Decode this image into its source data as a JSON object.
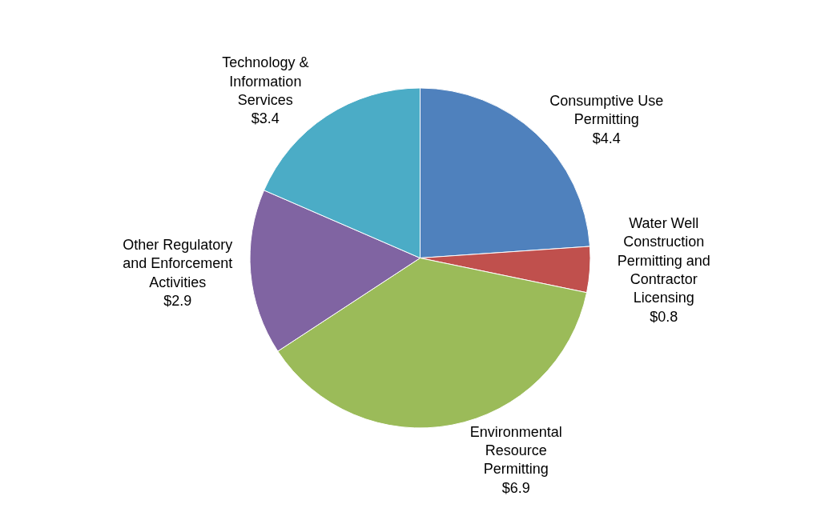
{
  "chart_data": {
    "type": "pie",
    "categories": [
      "Consumptive Use Permitting",
      "Water Well Construction Permitting and Contractor Licensing",
      "Environmental Resource Permitting",
      "Other Regulatory and Enforcement Activities",
      "Technology & Information Services"
    ],
    "values": [
      4.4,
      0.8,
      6.9,
      2.9,
      3.4
    ],
    "value_labels": [
      "$4.4",
      "$0.8",
      "$6.9",
      "$2.9",
      "$3.4"
    ],
    "colors": [
      "#4f81bd",
      "#c0504d",
      "#9bbb59",
      "#8064a2",
      "#4bacc6"
    ],
    "legend": false
  }
}
